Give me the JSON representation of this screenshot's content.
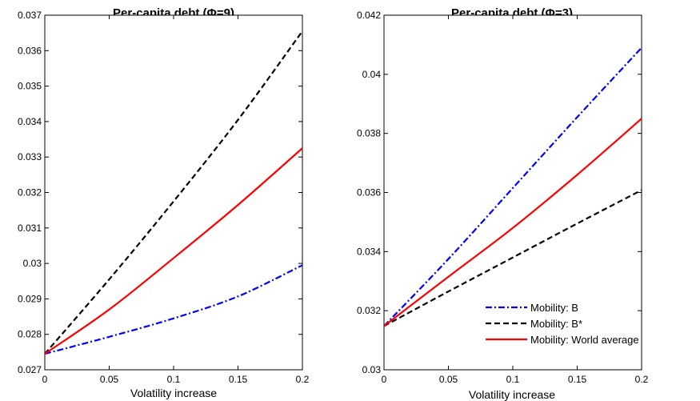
{
  "chart_data": [
    {
      "type": "line",
      "title": "Per-capita debt (Φ=9)",
      "xlabel": "Volatility increase",
      "ylabel": "",
      "xlim": [
        0,
        0.2
      ],
      "ylim": [
        0.027,
        0.037
      ],
      "xticks": [
        "0",
        "0.05",
        "0.1",
        "0.15",
        "0.2"
      ],
      "yticks": [
        "0.027",
        "0.028",
        "0.029",
        "0.03",
        "0.031",
        "0.032",
        "0.033",
        "0.034",
        "0.035",
        "0.036",
        "0.037"
      ],
      "x": [
        0,
        0.05,
        0.1,
        0.15,
        0.2
      ],
      "series": [
        {
          "name": "Mobility: B",
          "color": "#0000ff",
          "style": "dashdot",
          "values": [
            0.02745,
            0.02793,
            0.02845,
            0.02907,
            0.02995
          ]
        },
        {
          "name": "Mobility: B*",
          "color": "#000000",
          "style": "dashed",
          "values": [
            0.02745,
            0.02955,
            0.03175,
            0.03405,
            0.03655
          ]
        },
        {
          "name": "Mobility: World average",
          "color": "#ff0000",
          "style": "solid",
          "values": [
            0.02745,
            0.0287,
            0.03015,
            0.03165,
            0.03325
          ]
        }
      ],
      "legend": false
    },
    {
      "type": "line",
      "title": "Per-capita debt (Φ=3)",
      "xlabel": "Volatility increase",
      "ylabel": "",
      "xlim": [
        0,
        0.2
      ],
      "ylim": [
        0.03,
        0.042
      ],
      "xticks": [
        "0",
        "0.05",
        "0.1",
        "0.15",
        "0.2"
      ],
      "yticks": [
        "0.03",
        "0.032",
        "0.034",
        "0.036",
        "0.038",
        "0.04",
        "0.042"
      ],
      "x": [
        0,
        0.05,
        0.1,
        0.15,
        0.2
      ],
      "series": [
        {
          "name": "Mobility: B",
          "color": "#0000ff",
          "style": "dashdot",
          "values": [
            0.03148,
            0.03375,
            0.03615,
            0.03855,
            0.0409
          ]
        },
        {
          "name": "Mobility: B*",
          "color": "#000000",
          "style": "dashed",
          "values": [
            0.03148,
            0.03265,
            0.0338,
            0.03495,
            0.03608
          ]
        },
        {
          "name": "Mobility: World average",
          "color": "#ff0000",
          "style": "solid",
          "values": [
            0.03148,
            0.03315,
            0.0348,
            0.0366,
            0.0385
          ]
        }
      ],
      "legend": true,
      "legend_position": "bottom-right"
    }
  ]
}
